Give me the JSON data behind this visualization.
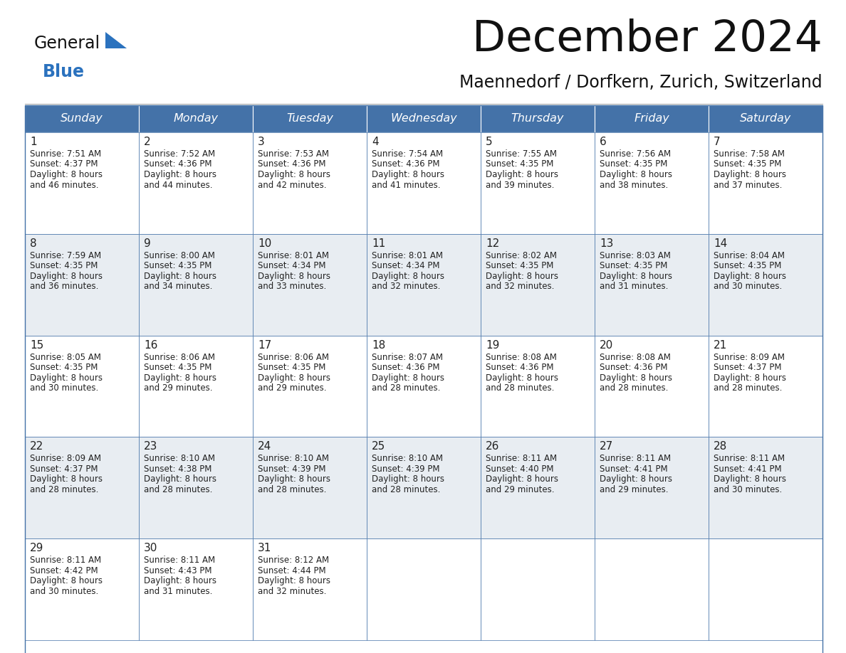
{
  "title": "December 2024",
  "subtitle": "Maennedorf / Dorfkern, Zurich, Switzerland",
  "days_of_week": [
    "Sunday",
    "Monday",
    "Tuesday",
    "Wednesday",
    "Thursday",
    "Friday",
    "Saturday"
  ],
  "header_bg": "#4472a8",
  "header_text": "#FFFFFF",
  "cell_bg_white": "#FFFFFF",
  "cell_bg_gray": "#E8EDF2",
  "border_color": "#4472a8",
  "sep_line_color": "#4472a8",
  "day_num_color": "#222222",
  "info_text_color": "#222222",
  "title_color": "#111111",
  "subtitle_color": "#111111",
  "logo_general_color": "#111111",
  "logo_blue_color": "#2B72BE",
  "logo_triangle_color": "#2B72BE",
  "background_color": "#FFFFFF",
  "calendar_data": [
    [
      {
        "day": "1",
        "sunrise": "7:51 AM",
        "sunset": "4:37 PM",
        "daylight_h": "8 hours",
        "daylight_m": "and 46 minutes."
      },
      {
        "day": "2",
        "sunrise": "7:52 AM",
        "sunset": "4:36 PM",
        "daylight_h": "8 hours",
        "daylight_m": "and 44 minutes."
      },
      {
        "day": "3",
        "sunrise": "7:53 AM",
        "sunset": "4:36 PM",
        "daylight_h": "8 hours",
        "daylight_m": "and 42 minutes."
      },
      {
        "day": "4",
        "sunrise": "7:54 AM",
        "sunset": "4:36 PM",
        "daylight_h": "8 hours",
        "daylight_m": "and 41 minutes."
      },
      {
        "day": "5",
        "sunrise": "7:55 AM",
        "sunset": "4:35 PM",
        "daylight_h": "8 hours",
        "daylight_m": "and 39 minutes."
      },
      {
        "day": "6",
        "sunrise": "7:56 AM",
        "sunset": "4:35 PM",
        "daylight_h": "8 hours",
        "daylight_m": "and 38 minutes."
      },
      {
        "day": "7",
        "sunrise": "7:58 AM",
        "sunset": "4:35 PM",
        "daylight_h": "8 hours",
        "daylight_m": "and 37 minutes."
      }
    ],
    [
      {
        "day": "8",
        "sunrise": "7:59 AM",
        "sunset": "4:35 PM",
        "daylight_h": "8 hours",
        "daylight_m": "and 36 minutes."
      },
      {
        "day": "9",
        "sunrise": "8:00 AM",
        "sunset": "4:35 PM",
        "daylight_h": "8 hours",
        "daylight_m": "and 34 minutes."
      },
      {
        "day": "10",
        "sunrise": "8:01 AM",
        "sunset": "4:34 PM",
        "daylight_h": "8 hours",
        "daylight_m": "and 33 minutes."
      },
      {
        "day": "11",
        "sunrise": "8:01 AM",
        "sunset": "4:34 PM",
        "daylight_h": "8 hours",
        "daylight_m": "and 32 minutes."
      },
      {
        "day": "12",
        "sunrise": "8:02 AM",
        "sunset": "4:35 PM",
        "daylight_h": "8 hours",
        "daylight_m": "and 32 minutes."
      },
      {
        "day": "13",
        "sunrise": "8:03 AM",
        "sunset": "4:35 PM",
        "daylight_h": "8 hours",
        "daylight_m": "and 31 minutes."
      },
      {
        "day": "14",
        "sunrise": "8:04 AM",
        "sunset": "4:35 PM",
        "daylight_h": "8 hours",
        "daylight_m": "and 30 minutes."
      }
    ],
    [
      {
        "day": "15",
        "sunrise": "8:05 AM",
        "sunset": "4:35 PM",
        "daylight_h": "8 hours",
        "daylight_m": "and 30 minutes."
      },
      {
        "day": "16",
        "sunrise": "8:06 AM",
        "sunset": "4:35 PM",
        "daylight_h": "8 hours",
        "daylight_m": "and 29 minutes."
      },
      {
        "day": "17",
        "sunrise": "8:06 AM",
        "sunset": "4:35 PM",
        "daylight_h": "8 hours",
        "daylight_m": "and 29 minutes."
      },
      {
        "day": "18",
        "sunrise": "8:07 AM",
        "sunset": "4:36 PM",
        "daylight_h": "8 hours",
        "daylight_m": "and 28 minutes."
      },
      {
        "day": "19",
        "sunrise": "8:08 AM",
        "sunset": "4:36 PM",
        "daylight_h": "8 hours",
        "daylight_m": "and 28 minutes."
      },
      {
        "day": "20",
        "sunrise": "8:08 AM",
        "sunset": "4:36 PM",
        "daylight_h": "8 hours",
        "daylight_m": "and 28 minutes."
      },
      {
        "day": "21",
        "sunrise": "8:09 AM",
        "sunset": "4:37 PM",
        "daylight_h": "8 hours",
        "daylight_m": "and 28 minutes."
      }
    ],
    [
      {
        "day": "22",
        "sunrise": "8:09 AM",
        "sunset": "4:37 PM",
        "daylight_h": "8 hours",
        "daylight_m": "and 28 minutes."
      },
      {
        "day": "23",
        "sunrise": "8:10 AM",
        "sunset": "4:38 PM",
        "daylight_h": "8 hours",
        "daylight_m": "and 28 minutes."
      },
      {
        "day": "24",
        "sunrise": "8:10 AM",
        "sunset": "4:39 PM",
        "daylight_h": "8 hours",
        "daylight_m": "and 28 minutes."
      },
      {
        "day": "25",
        "sunrise": "8:10 AM",
        "sunset": "4:39 PM",
        "daylight_h": "8 hours",
        "daylight_m": "and 28 minutes."
      },
      {
        "day": "26",
        "sunrise": "8:11 AM",
        "sunset": "4:40 PM",
        "daylight_h": "8 hours",
        "daylight_m": "and 29 minutes."
      },
      {
        "day": "27",
        "sunrise": "8:11 AM",
        "sunset": "4:41 PM",
        "daylight_h": "8 hours",
        "daylight_m": "and 29 minutes."
      },
      {
        "day": "28",
        "sunrise": "8:11 AM",
        "sunset": "4:41 PM",
        "daylight_h": "8 hours",
        "daylight_m": "and 30 minutes."
      }
    ],
    [
      {
        "day": "29",
        "sunrise": "8:11 AM",
        "sunset": "4:42 PM",
        "daylight_h": "8 hours",
        "daylight_m": "and 30 minutes."
      },
      {
        "day": "30",
        "sunrise": "8:11 AM",
        "sunset": "4:43 PM",
        "daylight_h": "8 hours",
        "daylight_m": "and 31 minutes."
      },
      {
        "day": "31",
        "sunrise": "8:12 AM",
        "sunset": "4:44 PM",
        "daylight_h": "8 hours",
        "daylight_m": "and 32 minutes."
      },
      null,
      null,
      null,
      null
    ]
  ]
}
